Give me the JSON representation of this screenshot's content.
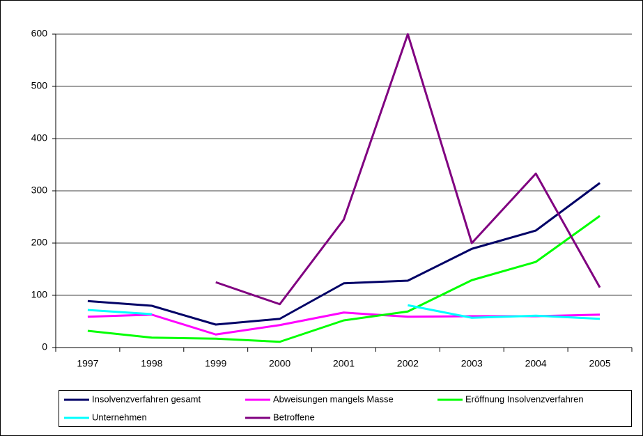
{
  "chart_data": {
    "type": "line",
    "categories": [
      "1997",
      "1998",
      "1999",
      "2000",
      "2001",
      "2002",
      "2003",
      "2004",
      "2005"
    ],
    "series": [
      {
        "name": "Insolvenzverfahren gesamt",
        "color": "#000066",
        "values": [
          89,
          80,
          44,
          55,
          123,
          128,
          189,
          224,
          315
        ]
      },
      {
        "name": "Abweisungen mangels Masse",
        "color": "#ff00ff",
        "values": [
          59,
          63,
          25,
          43,
          67,
          59,
          60,
          60,
          63
        ]
      },
      {
        "name": "Eröffnung Insolvenzverfahren",
        "color": "#00ff00",
        "values": [
          32,
          19,
          17,
          11,
          52,
          69,
          129,
          164,
          252
        ]
      },
      {
        "name": "Unternehmen",
        "color": "#00ffff",
        "values": [
          72,
          64,
          null,
          null,
          null,
          81,
          57,
          61,
          55
        ]
      },
      {
        "name": "Betroffene",
        "color": "#800080",
        "values": [
          null,
          null,
          125,
          83,
          245,
          600,
          200,
          333,
          115
        ]
      }
    ],
    "ylim": [
      0,
      600
    ],
    "yticks": [
      0,
      100,
      200,
      300,
      400,
      500,
      600
    ],
    "grid": true
  }
}
